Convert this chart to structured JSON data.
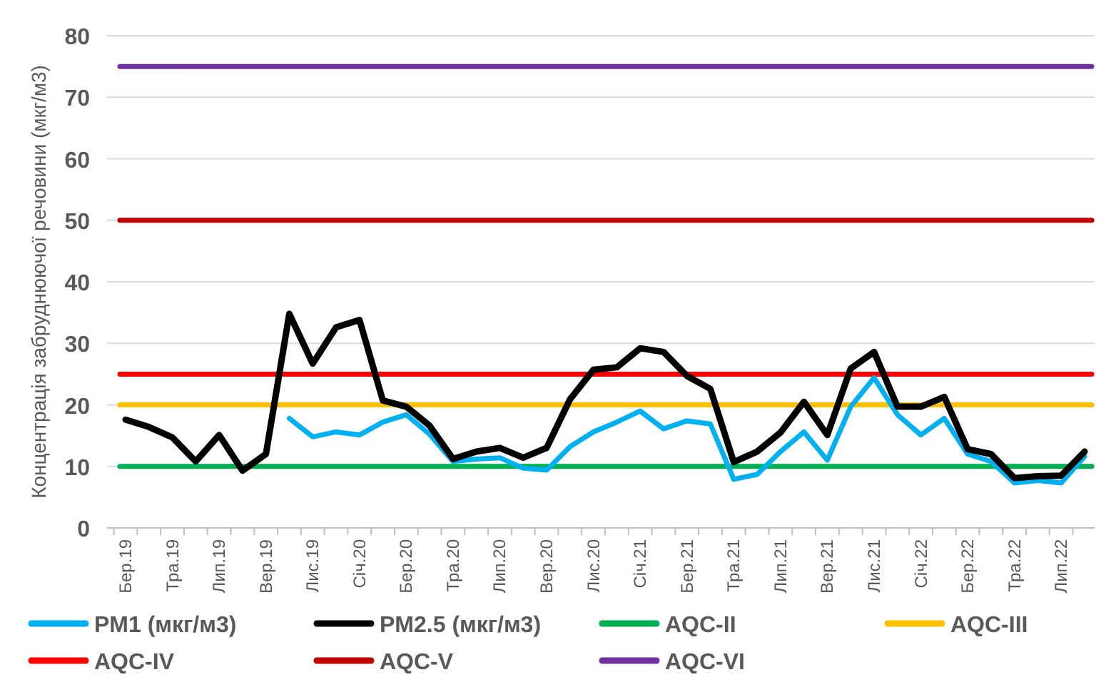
{
  "chart_data": {
    "type": "line",
    "ylabel": "Концентрація забруднюючої речовини (мкг/м3)",
    "categories": [
      "Бер.19",
      null,
      "Тра.19",
      null,
      "Лип.19",
      null,
      "Вер.19",
      null,
      "Лис.19",
      null,
      "Січ.20",
      null,
      "Бер.20",
      null,
      "Тра.20",
      null,
      "Лип.20",
      null,
      "Вер.20",
      null,
      "Лис.20",
      null,
      "Січ.21",
      null,
      "Бер.21",
      null,
      "Тра.21",
      null,
      "Лип.21",
      null,
      "Вер.21",
      null,
      "Лис.21",
      null,
      "Січ.22",
      null,
      "Бер.22",
      null,
      "Тра.22",
      null,
      "Лип.22",
      null
    ],
    "series": [
      {
        "name": "PM1 (мкг/м3)",
        "color": "#00b0f0",
        "values": [
          null,
          null,
          null,
          null,
          null,
          null,
          null,
          17.8,
          14.8,
          15.6,
          15.1,
          17.2,
          18.4,
          15.2,
          10.8,
          11.2,
          11.4,
          9.7,
          9.4,
          13.2,
          15.6,
          17.2,
          19.0,
          16.1,
          17.4,
          16.9,
          7.9,
          8.7,
          12.4,
          15.6,
          11.0,
          19.7,
          24.4,
          18.4,
          15.1,
          17.8,
          12.0,
          10.8,
          7.3,
          7.7,
          7.3,
          11.6
        ]
      },
      {
        "name": "PM2.5 (мкг/м3)",
        "color": "#000000",
        "values": [
          17.6,
          16.4,
          14.7,
          10.8,
          15.1,
          9.3,
          12.0,
          34.8,
          26.7,
          32.6,
          33.8,
          20.7,
          19.7,
          16.6,
          11.2,
          12.4,
          13.0,
          11.4,
          13.0,
          20.9,
          25.7,
          26.1,
          29.2,
          28.6,
          24.7,
          22.6,
          10.7,
          12.4,
          15.5,
          20.5,
          15.1,
          25.9,
          28.6,
          19.7,
          19.7,
          21.3,
          12.8,
          12.0,
          8.1,
          8.4,
          8.5,
          12.4
        ]
      }
    ],
    "ref_lines": [
      {
        "axis": "y",
        "value": 10,
        "label": "AQC-II",
        "color": "#00b050"
      },
      {
        "axis": "y",
        "value": 20,
        "label": "AQC-III",
        "color": "#ffc000"
      },
      {
        "axis": "y",
        "value": 25,
        "label": "AQC-IV",
        "color": "#ff0000"
      },
      {
        "axis": "y",
        "value": 50,
        "label": "AQC-V",
        "color": "#c00000"
      },
      {
        "axis": "y",
        "value": 75,
        "label": "AQC-VI",
        "color": "#7030a0"
      }
    ],
    "ylim": [
      0,
      80
    ],
    "yticks": [
      0,
      10,
      20,
      30,
      40,
      50,
      60,
      70,
      80
    ],
    "grid": "y",
    "legend": "bottom",
    "marker": "none",
    "line_style": "solid"
  }
}
